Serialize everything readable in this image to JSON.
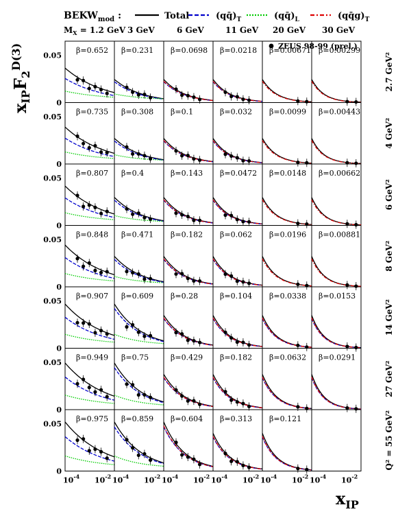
{
  "chart_data": {
    "type": "line",
    "title": "",
    "ylabel": "x_IP F_2^D(3)",
    "xlabel": "x_IP",
    "legend_title": "BEKW_mod :",
    "legend": [
      {
        "name": "Total",
        "color": "#000000",
        "dash": "solid"
      },
      {
        "name": "(qq̄)_T",
        "color": "#0000cc",
        "dash": "dashed"
      },
      {
        "name": "(qq̄)_L",
        "color": "#00cc00",
        "dash": "dotted"
      },
      {
        "name": "(qq̄g)_T",
        "color": "#dd0000",
        "dash": "dashdot"
      },
      {
        "name": "ZEUS 98-99 (prel.)",
        "color": "#000000",
        "marker": "filled-circle"
      }
    ],
    "x_scale": "log",
    "xlim": [
      5e-05,
      0.05
    ],
    "ylim": [
      0,
      0.065
    ],
    "y_ticks": [
      "0",
      "0.05"
    ],
    "x_ticks": [
      "10 -4",
      "10 -2"
    ],
    "mx_label": "M_X = 1.2 GeV",
    "mx_values": [
      "1.2 GeV",
      "3 GeV",
      "6 GeV",
      "11 GeV",
      "20 GeV",
      "30 GeV"
    ],
    "q2_labels": [
      "2.7 GeV²",
      "4 GeV²",
      "6 GeV²",
      "8 GeV²",
      "14 GeV²",
      "27 GeV²",
      "Q² = 55 GeV²"
    ],
    "beta": [
      [
        "0.652",
        "0.231",
        "0.0698",
        "0.0218",
        "0.00671",
        "0.00299"
      ],
      [
        "0.735",
        "0.308",
        "0.1",
        "0.032",
        "0.0099",
        "0.00443"
      ],
      [
        "0.807",
        "0.4",
        "0.143",
        "0.0472",
        "0.0148",
        "0.00662"
      ],
      [
        "0.848",
        "0.471",
        "0.182",
        "0.062",
        "0.0196",
        "0.00881"
      ],
      [
        "0.907",
        "0.609",
        "0.28",
        "0.104",
        "0.0338",
        "0.0153"
      ],
      [
        "0.949",
        "0.75",
        "0.429",
        "0.182",
        "0.0632",
        "0.0291"
      ],
      [
        "0.975",
        "0.859",
        "0.604",
        "0.313",
        "0.121",
        ""
      ]
    ],
    "grid": false
  },
  "colors": {
    "total": "#000000",
    "qqT": "#0000cc",
    "qqL": "#00cc00",
    "qqgT": "#dd0000"
  }
}
